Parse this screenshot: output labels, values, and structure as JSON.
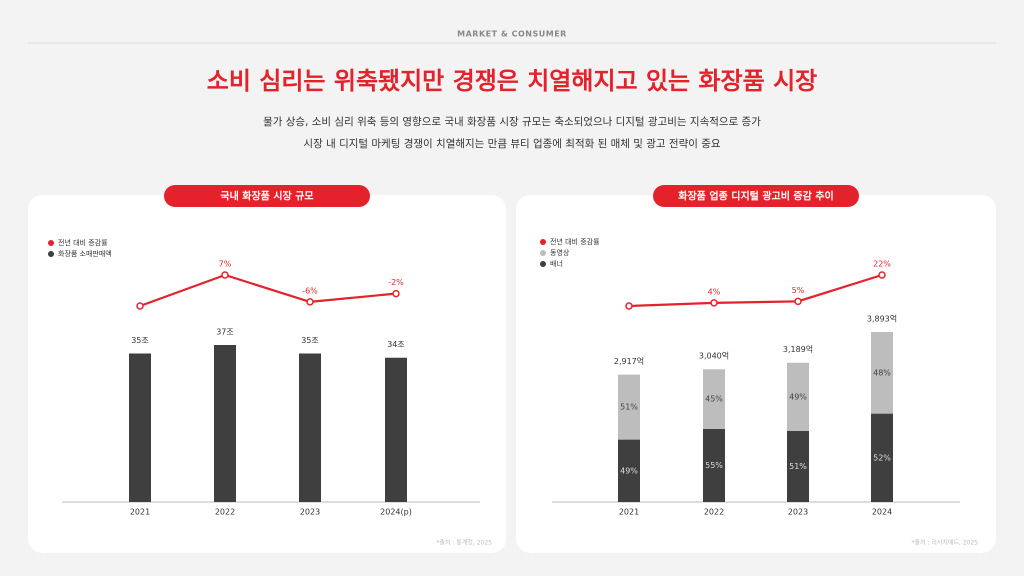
{
  "header": {
    "section": "MARKET & CONSUMER",
    "title": "소비 심리는 위축됐지만 경쟁은 치열해지고 있는 화장품 시장",
    "subtitle": [
      "물가 상승, 소비 심리 위축 등의 영향으로 국내 화장품 시장 규모는 축소되었으나 디지털 광고비는 지속적으로 증가",
      "시장 내 디지털 마케팅 경쟁이 치열해지는 만큼 뷰티 업종에 최적화 된 매체 및 광고 전략이 중요"
    ]
  },
  "chart_data": [
    {
      "type": "bar",
      "title": "국내 화장품 시장 규모",
      "categories": [
        "2021",
        "2022",
        "2023",
        "2024(p)"
      ],
      "series": [
        {
          "name": "전년 대비 증감률",
          "type": "line",
          "color": "#e3222b",
          "values": [
            -8,
            7,
            -6,
            -2
          ],
          "value_labels": [
            null,
            "7%",
            "-6%",
            "-2%"
          ]
        },
        {
          "name": "화장품 소매판매액",
          "type": "bar",
          "color": "#3f3f3f",
          "values": [
            35,
            37,
            35,
            34
          ],
          "value_labels": [
            "35조",
            "37조",
            "35조",
            "34조"
          ]
        }
      ],
      "source": "*출처 : 통계청, 2025"
    },
    {
      "type": "stacked-bar",
      "title": "화장품 업종 디지털 광고비 증감 추이",
      "categories": [
        "2021",
        "2022",
        "2023",
        "2024"
      ],
      "totals": {
        "values": [
          2917,
          3040,
          3189,
          3893
        ],
        "value_labels": [
          "2,917억",
          "3,040억",
          "3,189억",
          "3,893억"
        ]
      },
      "series": [
        {
          "name": "전년 대비 증감률",
          "type": "line",
          "color": "#e3222b",
          "values": [
            2,
            4,
            5,
            22
          ],
          "value_labels": [
            null,
            "4%",
            "5%",
            "22%"
          ]
        },
        {
          "name": "동영상",
          "type": "bar",
          "color": "#bdbdbd",
          "values": [
            51,
            45,
            49,
            48
          ],
          "value_labels": [
            "51%",
            "45%",
            "49%",
            "48%"
          ]
        },
        {
          "name": "배너",
          "type": "bar",
          "color": "#3f3f3f",
          "values": [
            49,
            55,
            51,
            52
          ],
          "value_labels": [
            "49%",
            "55%",
            "51%",
            "52%"
          ]
        }
      ],
      "source": "*출처 : 리서치애드, 2025"
    }
  ]
}
